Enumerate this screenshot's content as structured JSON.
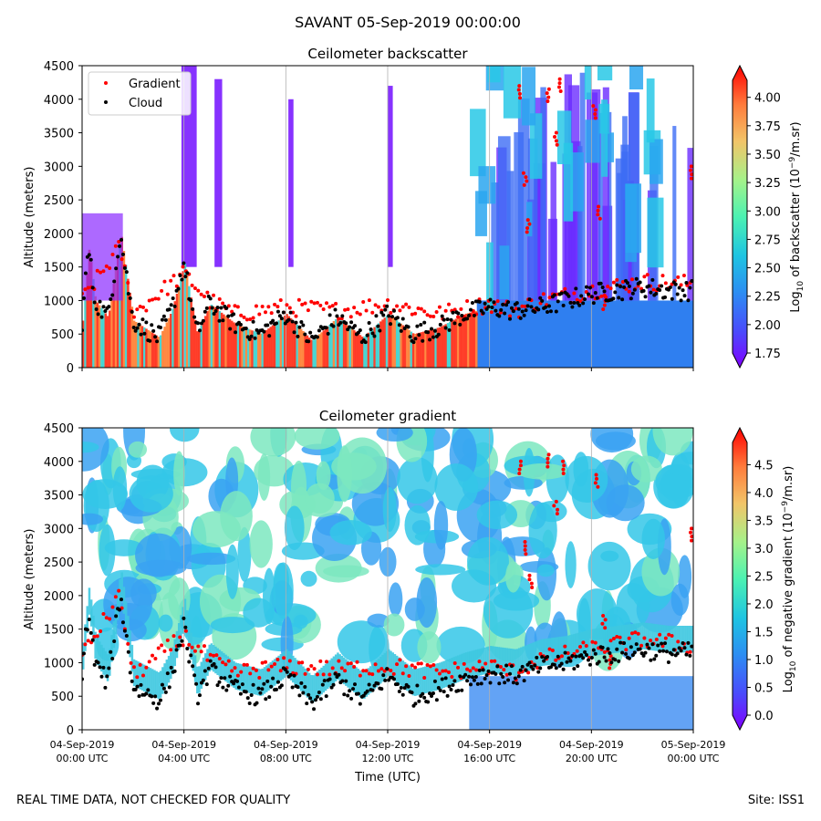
{
  "suptitle": "SAVANT 05-Sep-2019 00:00:00",
  "footer": {
    "left": "REAL TIME DATA, NOT CHECKED FOR QUALITY",
    "right": "Site: ISS1"
  },
  "colors": {
    "gradient_points": "#ff0000",
    "cloud_points": "#000000",
    "grid_line": "#b0b0b0"
  },
  "chart_data": [
    {
      "type": "heatmap",
      "title": "Ceilometer backscatter",
      "xlabel": "",
      "ylabel": "Altitude (meters)",
      "ylim": [
        0,
        4500
      ],
      "yticks": [
        "0",
        "500",
        "1000",
        "1500",
        "2000",
        "2500",
        "3000",
        "3500",
        "4000",
        "4500"
      ],
      "xlim": [
        "2019-09-04T00:00Z",
        "2019-09-05T00:00Z"
      ],
      "x_tick_labels_shown": false,
      "grid": "vertical lines every 4 h",
      "colormap": "rainbow",
      "colorbar": {
        "label_prefix": "Log",
        "label_sub": "10",
        "label_mid": " of backscatter (10",
        "label_sup": "−9",
        "label_suffix": "/m.sr)",
        "vmin": 1.75,
        "vmax": 4.15,
        "extend": "both",
        "ticks": [
          "1.75",
          "2.00",
          "2.25",
          "2.50",
          "2.75",
          "3.00",
          "3.25",
          "3.50",
          "3.75",
          "4.00"
        ]
      },
      "legend": {
        "placement": "upper-left",
        "entries": [
          {
            "label": "Gradient",
            "color": "#ff0000"
          },
          {
            "label": "Cloud",
            "color": "#000000"
          }
        ]
      },
      "cloud_base_trace_m": [
        [
          0.0,
          700
        ],
        [
          0.25,
          1800
        ],
        [
          0.5,
          1000
        ],
        [
          1.0,
          750
        ],
        [
          1.5,
          2000
        ],
        [
          2.0,
          700
        ],
        [
          3.0,
          450
        ],
        [
          3.5,
          850
        ],
        [
          4.0,
          1550
        ],
        [
          4.5,
          500
        ],
        [
          5.0,
          950
        ],
        [
          6.0,
          650
        ],
        [
          7.0,
          500
        ],
        [
          8.0,
          800
        ],
        [
          9.0,
          400
        ],
        [
          10.0,
          750
        ],
        [
          11.0,
          450
        ],
        [
          12.0,
          800
        ],
        [
          13.0,
          500
        ],
        [
          14.0,
          600
        ],
        [
          15.0,
          800
        ],
        [
          16.0,
          900
        ],
        [
          17.0,
          850
        ],
        [
          18.0,
          900
        ],
        [
          19.0,
          1000
        ],
        [
          20.0,
          1100
        ],
        [
          21.0,
          1150
        ],
        [
          22.0,
          1200
        ],
        [
          23.0,
          1150
        ],
        [
          24.0,
          1150
        ]
      ],
      "gradient_trace_m": [
        [
          0.0,
          1000
        ],
        [
          1.5,
          1800
        ],
        [
          2.0,
          800
        ],
        [
          4.0,
          1400
        ],
        [
          5.0,
          1000
        ],
        [
          6.0,
          800
        ],
        [
          8.0,
          900
        ],
        [
          10.0,
          850
        ],
        [
          12.0,
          950
        ],
        [
          14.0,
          800
        ],
        [
          16.0,
          950
        ],
        [
          17.0,
          850
        ],
        [
          18.0,
          1000
        ],
        [
          20.0,
          1150
        ],
        [
          22.0,
          1280
        ],
        [
          24.0,
          1250
        ]
      ],
      "gradient_isolated_points_m": [
        [
          17.2,
          4200
        ],
        [
          17.4,
          2900
        ],
        [
          17.5,
          2200
        ],
        [
          18.3,
          4150
        ],
        [
          18.6,
          3500
        ],
        [
          18.8,
          4300
        ],
        [
          20.1,
          3900
        ],
        [
          20.3,
          2400
        ],
        [
          20.5,
          1050
        ],
        [
          23.9,
          3000
        ]
      ]
    },
    {
      "type": "heatmap",
      "title": "Ceilometer gradient",
      "xlabel": "Time (UTC)",
      "ylabel": "Altitude (meters)",
      "ylim": [
        0,
        4500
      ],
      "yticks": [
        "0",
        "500",
        "1000",
        "1500",
        "2000",
        "2500",
        "3000",
        "3500",
        "4000",
        "4500"
      ],
      "x_tick_labels": [
        [
          "04-Sep-2019",
          "00:00 UTC"
        ],
        [
          "04-Sep-2019",
          "04:00 UTC"
        ],
        [
          "04-Sep-2019",
          "08:00 UTC"
        ],
        [
          "04-Sep-2019",
          "12:00 UTC"
        ],
        [
          "04-Sep-2019",
          "16:00 UTC"
        ],
        [
          "04-Sep-2019",
          "20:00 UTC"
        ],
        [
          "05-Sep-2019",
          "00:00 UTC"
        ]
      ],
      "x_tick_hours": [
        0,
        4,
        8,
        12,
        16,
        20,
        24
      ],
      "grid": "vertical lines every 4 h",
      "colormap": "rainbow",
      "colorbar": {
        "label_prefix": "Log",
        "label_sub": "10",
        "label_mid": " of negative gradient (10",
        "label_sup": "−9",
        "label_suffix": "/m.sr)",
        "vmin": 0.0,
        "vmax": 4.9,
        "extend": "both",
        "ticks": [
          "0.0",
          "0.5",
          "1.0",
          "1.5",
          "2.0",
          "2.5",
          "3.0",
          "3.5",
          "4.0",
          "4.5"
        ]
      },
      "cloud_base_trace_m": [
        [
          0.0,
          900
        ],
        [
          0.25,
          1750
        ],
        [
          0.5,
          1000
        ],
        [
          1.0,
          700
        ],
        [
          1.5,
          2000
        ],
        [
          2.0,
          650
        ],
        [
          3.0,
          450
        ],
        [
          3.5,
          800
        ],
        [
          4.0,
          1550
        ],
        [
          4.5,
          500
        ],
        [
          5.0,
          900
        ],
        [
          6.0,
          600
        ],
        [
          7.0,
          500
        ],
        [
          8.0,
          800
        ],
        [
          9.0,
          400
        ],
        [
          10.0,
          750
        ],
        [
          11.0,
          450
        ],
        [
          12.0,
          800
        ],
        [
          13.0,
          500
        ],
        [
          14.0,
          600
        ],
        [
          15.0,
          750
        ],
        [
          16.0,
          850
        ],
        [
          17.0,
          800
        ],
        [
          18.0,
          950
        ],
        [
          19.0,
          1000
        ],
        [
          20.0,
          1100
        ],
        [
          21.0,
          1150
        ],
        [
          22.0,
          1200
        ],
        [
          23.0,
          1150
        ],
        [
          24.0,
          1150
        ]
      ],
      "gradient_trace_m": [
        [
          0.0,
          1100
        ],
        [
          1.5,
          2000
        ],
        [
          2.0,
          800
        ],
        [
          4.0,
          1400
        ],
        [
          5.0,
          1050
        ],
        [
          6.0,
          850
        ],
        [
          8.0,
          950
        ],
        [
          10.0,
          900
        ],
        [
          12.0,
          950
        ],
        [
          14.0,
          850
        ],
        [
          16.0,
          950
        ],
        [
          17.0,
          850
        ],
        [
          18.0,
          1050
        ],
        [
          20.0,
          1200
        ],
        [
          22.0,
          1350
        ],
        [
          24.0,
          1250
        ]
      ],
      "gradient_isolated_points_m": [
        [
          17.2,
          4000
        ],
        [
          17.4,
          2800
        ],
        [
          17.6,
          2300
        ],
        [
          18.3,
          4100
        ],
        [
          18.6,
          3400
        ],
        [
          18.9,
          4000
        ],
        [
          20.2,
          3800
        ],
        [
          20.5,
          1700
        ],
        [
          20.7,
          1100
        ],
        [
          23.9,
          3000
        ]
      ]
    }
  ]
}
